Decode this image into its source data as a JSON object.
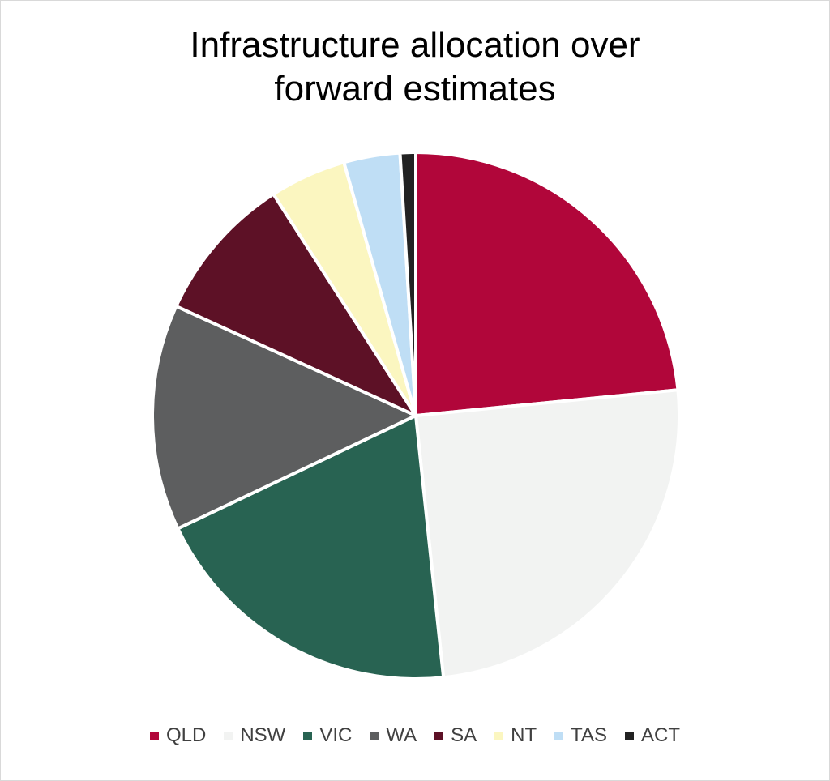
{
  "chart_data": {
    "type": "pie",
    "title_lines": [
      "Infrastructure allocation over",
      "forward estimates"
    ],
    "legend_position": "bottom",
    "slices": [
      {
        "label": "QLD",
        "value": 24.5,
        "color": "#b1063a"
      },
      {
        "label": "NSW",
        "value": 26.0,
        "color": "#f2f3f2"
      },
      {
        "label": "VIC",
        "value": 20.5,
        "color": "#286352"
      },
      {
        "label": "WA",
        "value": 14.5,
        "color": "#5d5e5f"
      },
      {
        "label": "SA",
        "value": 9.5,
        "color": "#5d1126"
      },
      {
        "label": "NT",
        "value": 4.9,
        "color": "#fbf6c0"
      },
      {
        "label": "TAS",
        "value": 3.6,
        "color": "#bfdef5"
      },
      {
        "label": "ACT",
        "value": 1.0,
        "color": "#222222"
      }
    ]
  }
}
